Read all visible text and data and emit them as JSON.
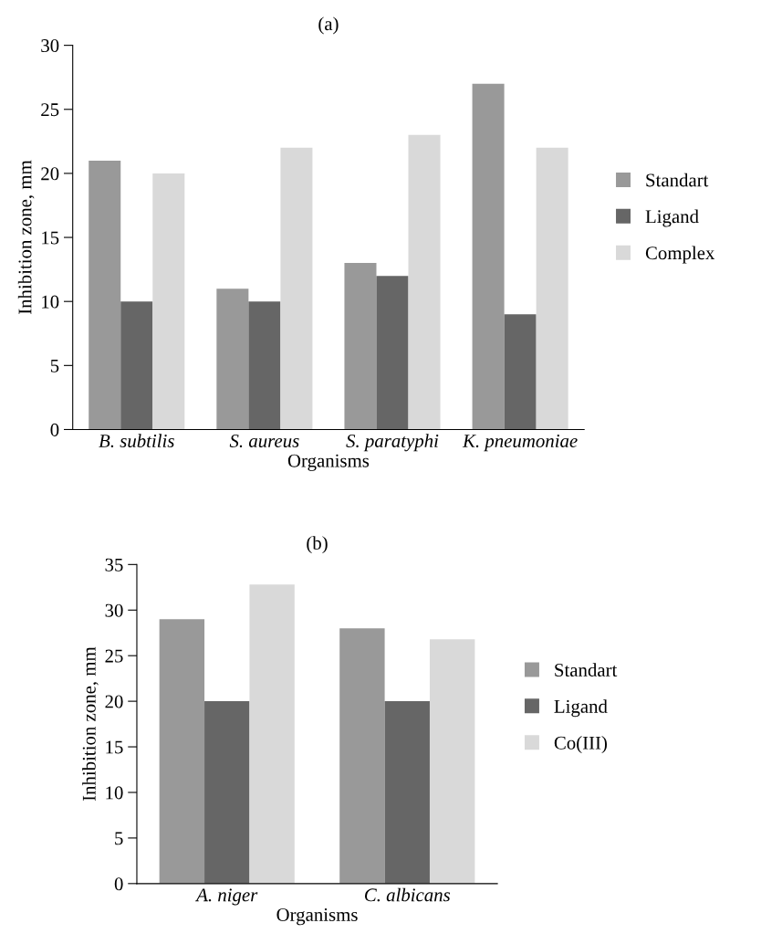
{
  "chart_data": [
    {
      "type": "bar",
      "title": "(a)",
      "xlabel": "Organisms",
      "ylabel": "Inhibition zone, mm",
      "categories": [
        "B. subtilis",
        "S. aureus",
        "S. paratyphi",
        "K. pneumoniae"
      ],
      "series": [
        {
          "name": "Standart",
          "color": "#999999",
          "values": [
            21,
            11,
            13,
            27
          ]
        },
        {
          "name": "Ligand",
          "color": "#666666",
          "values": [
            10,
            10,
            12,
            9
          ]
        },
        {
          "name": "Complex",
          "color": "#d9d9d9",
          "values": [
            20,
            22,
            23,
            22
          ]
        }
      ],
      "ylim": [
        0,
        30
      ],
      "yticks": [
        0,
        5,
        10,
        15,
        20,
        25,
        30
      ],
      "grid": false,
      "legend": "right"
    },
    {
      "type": "bar",
      "title": "(b)",
      "xlabel": "Organisms",
      "ylabel": "Inhibition zone, mm",
      "categories": [
        "A. niger",
        "C. albicans"
      ],
      "series": [
        {
          "name": "Standart",
          "color": "#999999",
          "values": [
            29,
            28
          ]
        },
        {
          "name": "Ligand",
          "color": "#666666",
          "values": [
            20,
            20
          ]
        },
        {
          "name": "Co(III)",
          "color": "#d9d9d9",
          "values": [
            32.8,
            26.8
          ]
        }
      ],
      "ylim": [
        0,
        35
      ],
      "yticks": [
        0,
        5,
        10,
        15,
        20,
        25,
        30,
        35
      ],
      "grid": false,
      "legend": "right"
    }
  ]
}
